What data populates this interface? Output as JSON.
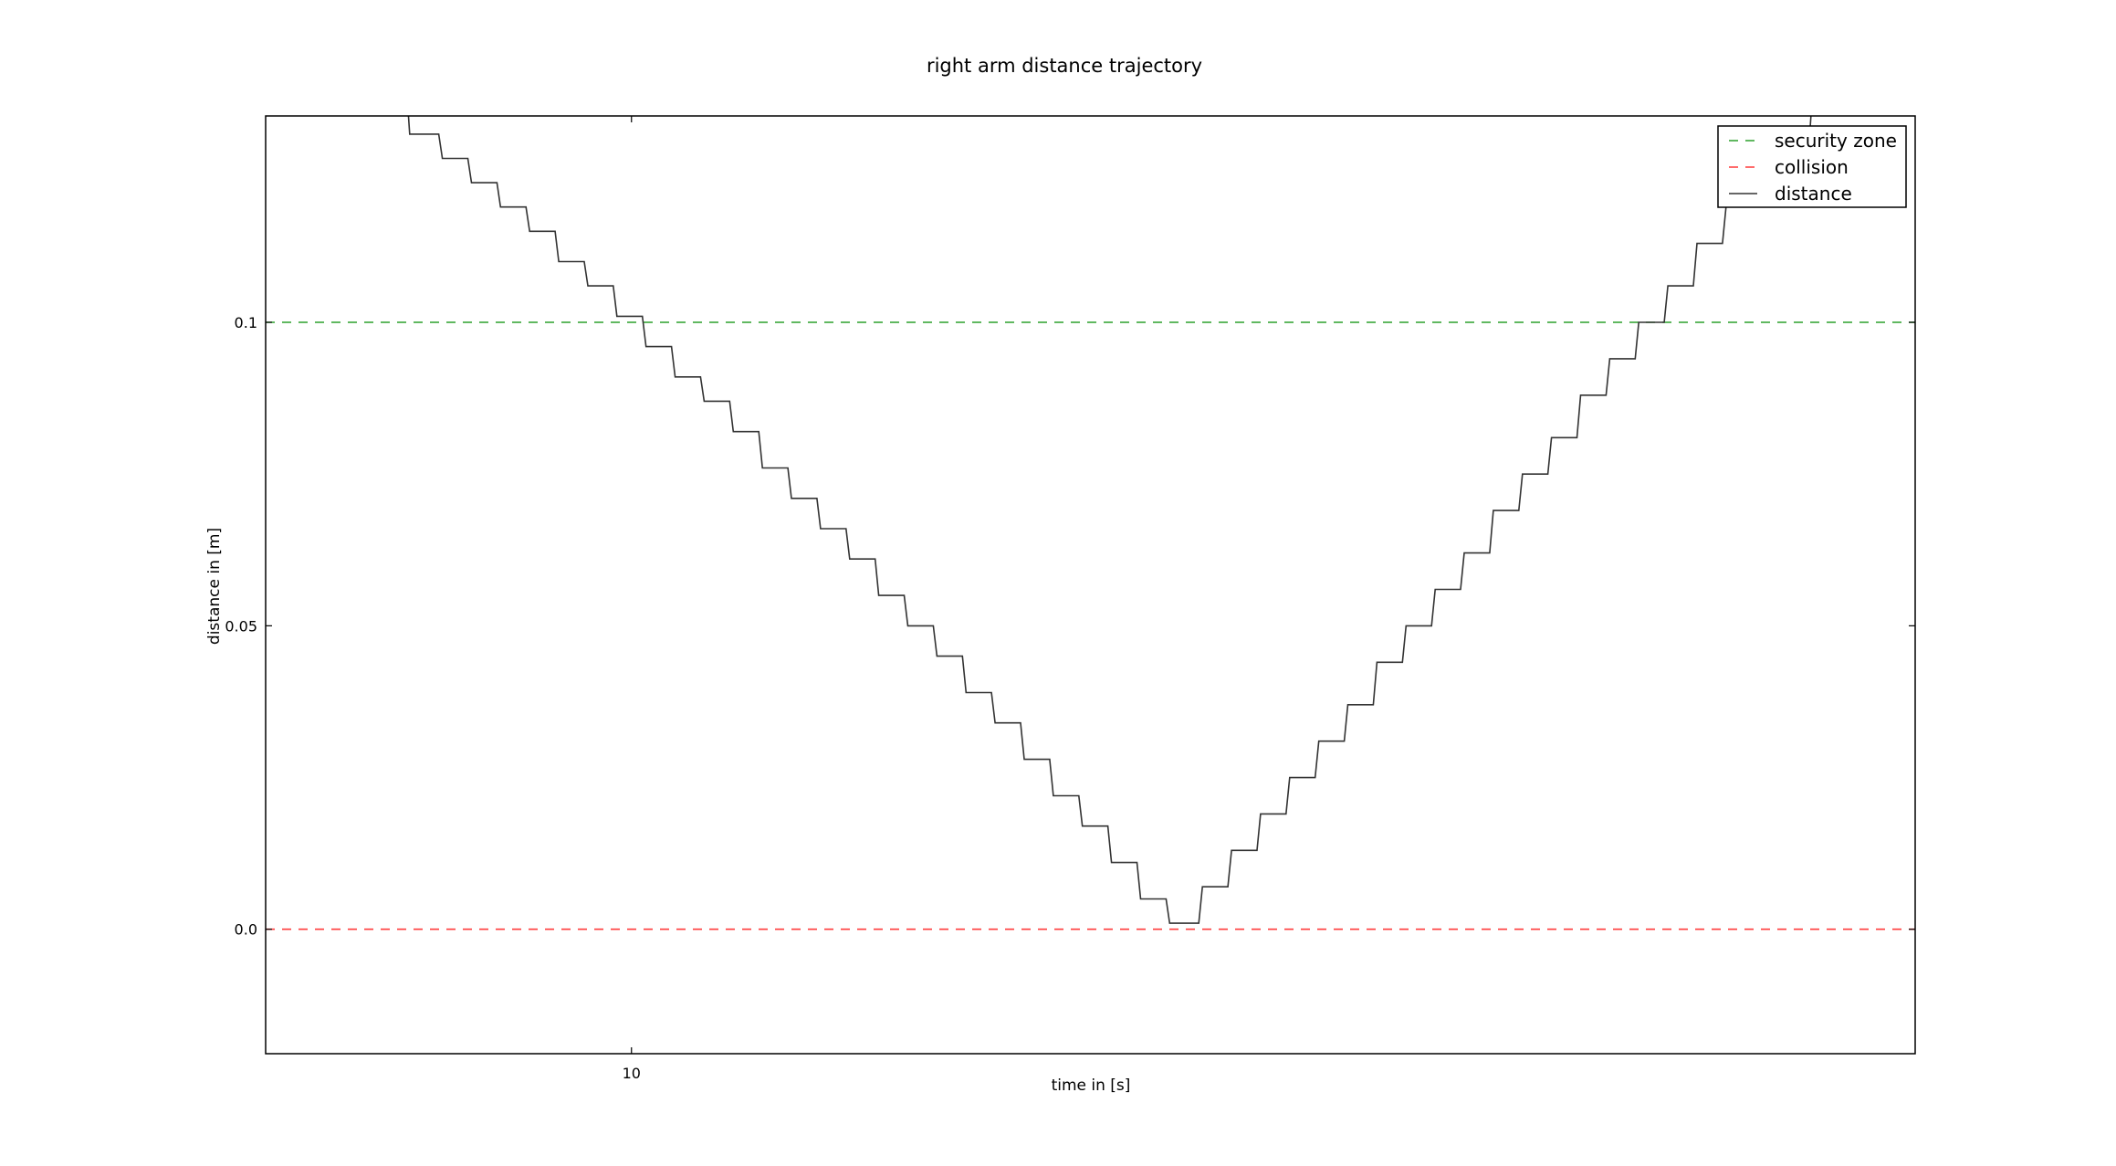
{
  "chart_data": {
    "type": "line",
    "title": "right arm distance trajectory",
    "xlabel": "time in [s]",
    "ylabel": "distance in [m]",
    "xlim": [
      8.994,
      13.53
    ],
    "ylim": [
      -0.0205,
      0.134
    ],
    "x_ticks": [
      {
        "value": 10,
        "label": "10"
      }
    ],
    "y_ticks": [
      {
        "value": 0.0,
        "label": "0.0"
      },
      {
        "value": 0.05,
        "label": "0.05"
      },
      {
        "value": 0.1,
        "label": "0.1"
      }
    ],
    "grid": false,
    "legend": {
      "placement": "top-right",
      "entries": [
        {
          "label": "security zone",
          "color": "#2ca02c",
          "style": "dashed"
        },
        {
          "label": "collision",
          "color": "#ff3b3b",
          "style": "dashed"
        },
        {
          "label": "distance",
          "color": "#333333",
          "style": "solid"
        }
      ]
    },
    "series": [
      {
        "name": "security zone",
        "type": "hline",
        "y": 0.1,
        "color": "#2ca02c",
        "style": "dashed"
      },
      {
        "name": "collision",
        "type": "hline",
        "y": 0.0,
        "color": "#ff3b3b",
        "style": "dashed"
      },
      {
        "name": "distance",
        "type": "step",
        "color": "#333333",
        "style": "solid",
        "points": [
          [
            9.38,
            0.14
          ],
          [
            9.39,
            0.131
          ],
          [
            9.47,
            0.131
          ],
          [
            9.48,
            0.127
          ],
          [
            9.55,
            0.127
          ],
          [
            9.56,
            0.123
          ],
          [
            9.63,
            0.123
          ],
          [
            9.64,
            0.119
          ],
          [
            9.71,
            0.119
          ],
          [
            9.72,
            0.115
          ],
          [
            9.79,
            0.115
          ],
          [
            9.8,
            0.11
          ],
          [
            9.87,
            0.11
          ],
          [
            9.88,
            0.106
          ],
          [
            9.95,
            0.106
          ],
          [
            9.96,
            0.101
          ],
          [
            10.03,
            0.101
          ],
          [
            10.04,
            0.096
          ],
          [
            10.11,
            0.096
          ],
          [
            10.12,
            0.091
          ],
          [
            10.19,
            0.091
          ],
          [
            10.2,
            0.087
          ],
          [
            10.27,
            0.087
          ],
          [
            10.28,
            0.082
          ],
          [
            10.35,
            0.082
          ],
          [
            10.36,
            0.076
          ],
          [
            10.43,
            0.076
          ],
          [
            10.44,
            0.071
          ],
          [
            10.51,
            0.071
          ],
          [
            10.52,
            0.066
          ],
          [
            10.59,
            0.066
          ],
          [
            10.6,
            0.061
          ],
          [
            10.67,
            0.061
          ],
          [
            10.68,
            0.055
          ],
          [
            10.75,
            0.055
          ],
          [
            10.76,
            0.05
          ],
          [
            10.83,
            0.05
          ],
          [
            10.84,
            0.045
          ],
          [
            10.91,
            0.045
          ],
          [
            10.92,
            0.039
          ],
          [
            10.99,
            0.039
          ],
          [
            11.0,
            0.034
          ],
          [
            11.07,
            0.034
          ],
          [
            11.08,
            0.028
          ],
          [
            11.15,
            0.028
          ],
          [
            11.16,
            0.022
          ],
          [
            11.23,
            0.022
          ],
          [
            11.24,
            0.017
          ],
          [
            11.31,
            0.017
          ],
          [
            11.32,
            0.011
          ],
          [
            11.39,
            0.011
          ],
          [
            11.4,
            0.005
          ],
          [
            11.47,
            0.005
          ],
          [
            11.48,
            0.001
          ],
          [
            11.56,
            0.001
          ],
          [
            11.57,
            0.007
          ],
          [
            11.64,
            0.007
          ],
          [
            11.65,
            0.013
          ],
          [
            11.72,
            0.013
          ],
          [
            11.73,
            0.019
          ],
          [
            11.8,
            0.019
          ],
          [
            11.81,
            0.025
          ],
          [
            11.88,
            0.025
          ],
          [
            11.89,
            0.031
          ],
          [
            11.96,
            0.031
          ],
          [
            11.97,
            0.037
          ],
          [
            12.04,
            0.037
          ],
          [
            12.05,
            0.044
          ],
          [
            12.12,
            0.044
          ],
          [
            12.13,
            0.05
          ],
          [
            12.2,
            0.05
          ],
          [
            12.21,
            0.056
          ],
          [
            12.28,
            0.056
          ],
          [
            12.29,
            0.062
          ],
          [
            12.36,
            0.062
          ],
          [
            12.37,
            0.069
          ],
          [
            12.44,
            0.069
          ],
          [
            12.45,
            0.075
          ],
          [
            12.52,
            0.075
          ],
          [
            12.53,
            0.081
          ],
          [
            12.6,
            0.081
          ],
          [
            12.61,
            0.088
          ],
          [
            12.68,
            0.088
          ],
          [
            12.69,
            0.094
          ],
          [
            12.76,
            0.094
          ],
          [
            12.77,
            0.1
          ],
          [
            12.84,
            0.1
          ],
          [
            12.85,
            0.106
          ],
          [
            12.92,
            0.106
          ],
          [
            12.93,
            0.113
          ],
          [
            13.0,
            0.113
          ],
          [
            13.01,
            0.119
          ],
          [
            13.08,
            0.119
          ],
          [
            13.09,
            0.125
          ],
          [
            13.16,
            0.125
          ],
          [
            13.17,
            0.131
          ],
          [
            13.24,
            0.131
          ],
          [
            13.25,
            0.14
          ]
        ]
      }
    ]
  }
}
